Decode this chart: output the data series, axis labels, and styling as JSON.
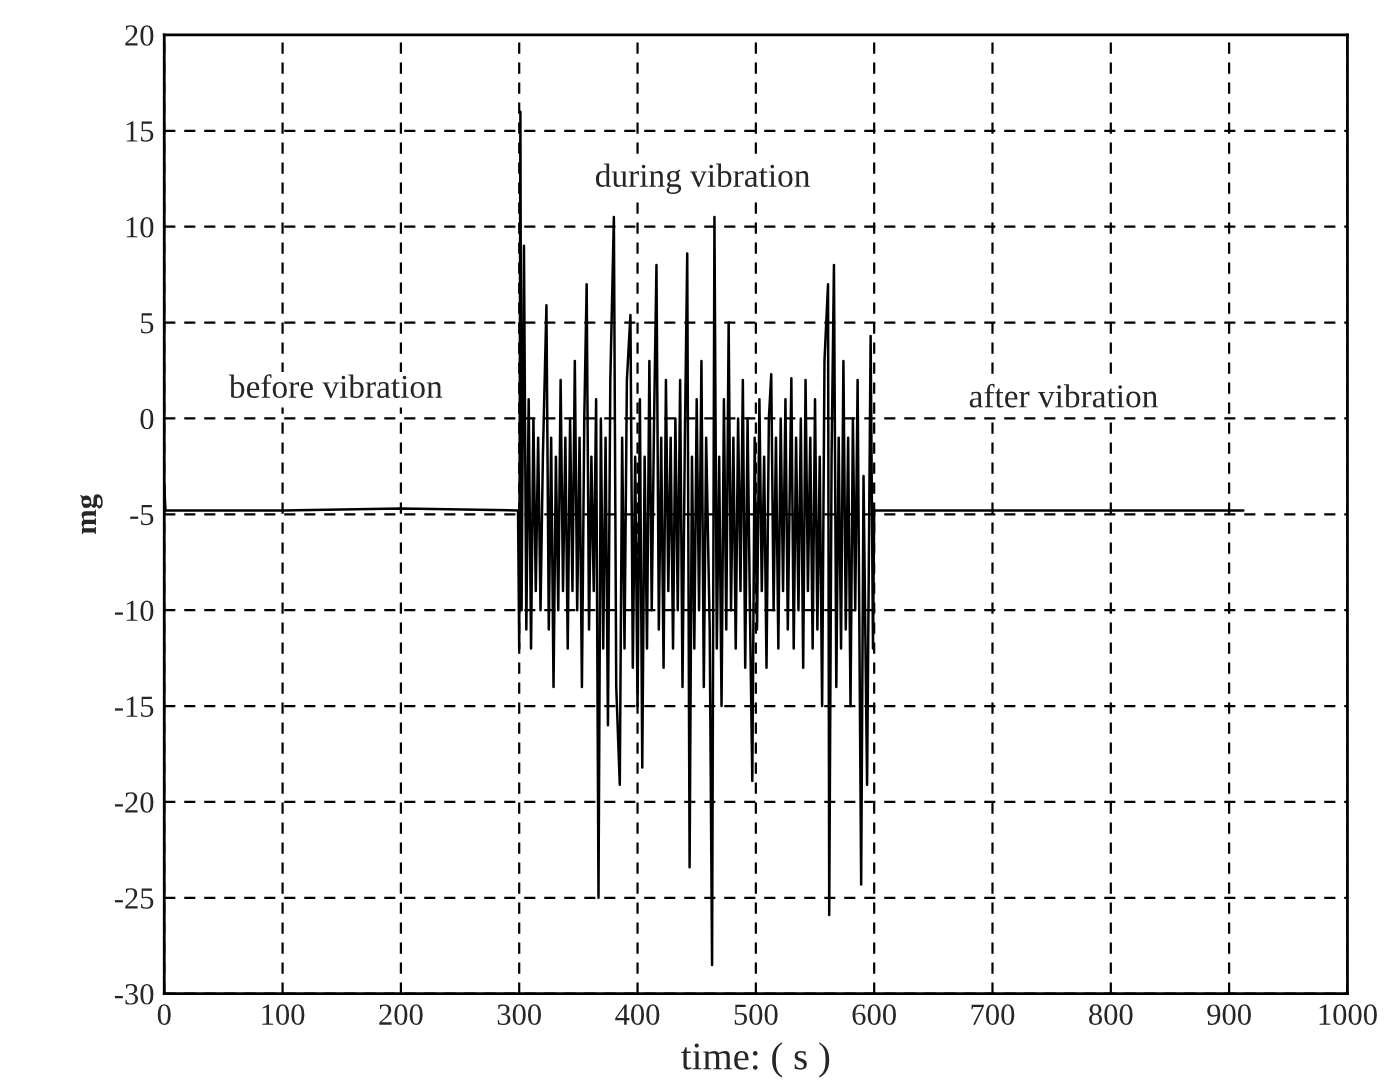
{
  "chart_data": {
    "type": "line",
    "xlabel": "time: ( s )",
    "ylabel": "mg",
    "xlim": [
      0,
      1000
    ],
    "xticks": [
      0,
      100,
      200,
      300,
      400,
      500,
      600,
      700,
      800,
      900,
      1000
    ],
    "ylim": [
      -30,
      20
    ],
    "yticks": [
      -30,
      -25,
      -20,
      -15,
      -10,
      -5,
      0,
      5,
      10,
      15,
      20
    ],
    "grid": true,
    "line_style": "solid",
    "annotations": [
      "before vibration",
      "during vibration",
      "after vibration"
    ],
    "series": [
      {
        "color": "#000000",
        "x": [
          0,
          1,
          100,
          200,
          299,
          300,
          301,
          302,
          304,
          306,
          308,
          310,
          312,
          314,
          316,
          318,
          320,
          323,
          325,
          327,
          329,
          331,
          333,
          335,
          337,
          339,
          341,
          343,
          345,
          347,
          349,
          351,
          353,
          355,
          357,
          359,
          361,
          363,
          365,
          367,
          369,
          371,
          373,
          375,
          377,
          380,
          382,
          385,
          387,
          389,
          391,
          394,
          396,
          398,
          400,
          402,
          404,
          406,
          408,
          410,
          412,
          414,
          416,
          418,
          420,
          422,
          424,
          426,
          428,
          430,
          432,
          434,
          436,
          438,
          440,
          442,
          444,
          446,
          448,
          450,
          452,
          454,
          456,
          458,
          461,
          463,
          465,
          467,
          469,
          471,
          473,
          475,
          477,
          479,
          481,
          483,
          485,
          487,
          489,
          491,
          493,
          495,
          497,
          499,
          501,
          503,
          505,
          507,
          509,
          511,
          513,
          515,
          517,
          519,
          521,
          523,
          525,
          527,
          530,
          532,
          534,
          536,
          538,
          540,
          542,
          544,
          546,
          548,
          550,
          552,
          554,
          556,
          558,
          561,
          562,
          564,
          566,
          568,
          570,
          572,
          574,
          576,
          578,
          580,
          582,
          584,
          586,
          589,
          591,
          594,
          597,
          599,
          600,
          700,
          800,
          912
        ],
        "values": [
          -3.5,
          -4.8,
          -4.8,
          -4.7,
          -4.8,
          -12,
          16,
          -10,
          9,
          -11,
          1,
          -12,
          0,
          -9,
          -1,
          -10,
          -2,
          5.9,
          -11,
          -1,
          -14,
          -2,
          -10,
          2,
          -9,
          -1,
          -12,
          0,
          -9,
          3,
          -10,
          -1,
          -14,
          0,
          7,
          -11,
          -2,
          -9,
          1,
          -25,
          0,
          -12,
          -1,
          -16,
          2,
          10.5,
          -14,
          -19.1,
          -1,
          -12,
          2,
          5.4,
          -13,
          -2,
          -15,
          1,
          -18.2,
          -2,
          -12,
          3,
          -10,
          0,
          8,
          -11,
          -1,
          -13,
          2,
          -9,
          -1,
          -12,
          0,
          -10,
          2,
          -14,
          -1,
          8.6,
          -23.4,
          -2,
          -12,
          1,
          -10,
          3,
          -14,
          -1,
          -11,
          -28.5,
          10.5,
          -12,
          -2,
          -15,
          1,
          -11,
          5,
          -10,
          -1,
          -12,
          0,
          -9,
          2,
          -13,
          0,
          -10,
          -18.9,
          -1,
          -11,
          1,
          -9,
          -2,
          -13,
          0,
          2.3,
          -10,
          -1,
          -12,
          0,
          -9,
          1,
          -11,
          2.1,
          -12,
          -1,
          -10,
          0,
          -13,
          2,
          -9,
          -1,
          -12,
          1,
          -11,
          -2,
          -15,
          3,
          7,
          -25.9,
          -2,
          8,
          -14,
          -1,
          -12,
          3,
          -11,
          -1,
          -15,
          0,
          -10,
          2,
          -24.3,
          -3,
          -19.1,
          4.3,
          -12,
          -4.8,
          -4.8,
          -4.8,
          -4.8
        ]
      }
    ]
  }
}
